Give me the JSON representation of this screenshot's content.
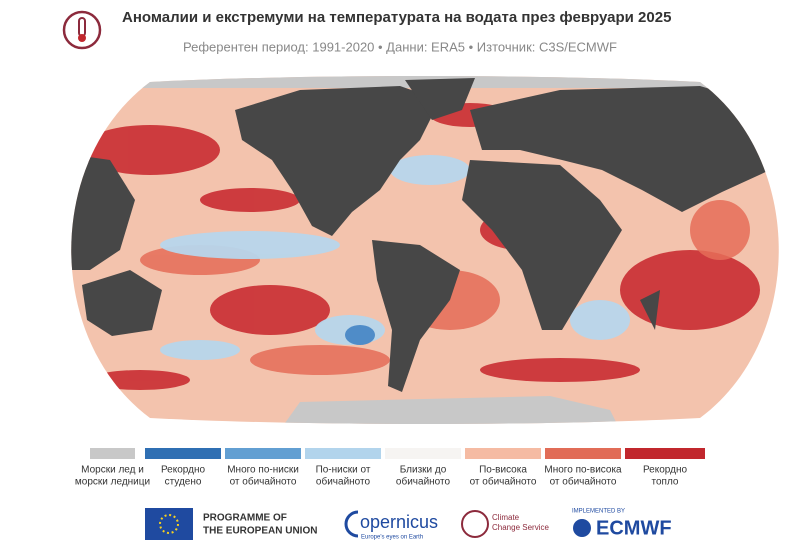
{
  "header": {
    "title": "Аномалии и екстремуми на температурата на водата през февруари 2025",
    "subtitle": "Референтен период: 1991-2020 • Данни: ERA5 • Източник: C3S/ECMWF"
  },
  "legend": [
    {
      "color": "#c8c8c8",
      "label": [
        "Морски лед и",
        "морски ледници"
      ]
    },
    {
      "color": "#2f6fb3",
      "label": [
        "Рекордно",
        "студено"
      ]
    },
    {
      "color": "#629fd2",
      "label": [
        "Много по-ниски",
        "от обичайното"
      ]
    },
    {
      "color": "#b2d4ec",
      "label": [
        "По-ниски от",
        "обичайното"
      ]
    },
    {
      "color": "#f6f4f2",
      "label": [
        "Близки до",
        "обичайното"
      ]
    },
    {
      "color": "#f5bba3",
      "label": [
        "По-висока",
        "от обичайното"
      ]
    },
    {
      "color": "#e16c57",
      "label": [
        "Много по-висока",
        "от обичайното"
      ]
    },
    {
      "color": "#c1272d",
      "label": [
        "Рекордно",
        "топло"
      ]
    }
  ],
  "footer": {
    "eu": [
      "PROGRAMME OF",
      "THE EUROPEAN UNION"
    ],
    "copernicus": {
      "name": "opernicus",
      "tagline": "Europe's eyes on Earth"
    },
    "c3s": [
      "Climate",
      "Change Service"
    ],
    "ecmwf": {
      "note": "IMPLEMENTED BY",
      "name": "ECMWF"
    }
  }
}
